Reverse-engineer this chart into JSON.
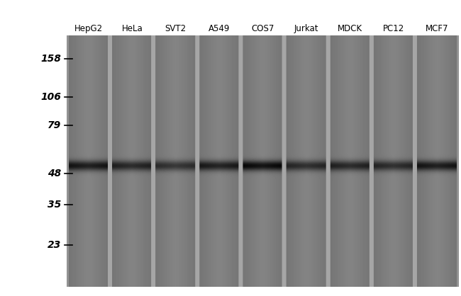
{
  "sample_labels": [
    "HepG2",
    "HeLa",
    "SVT2",
    "A549",
    "COS7",
    "Jurkat",
    "MDCK",
    "PC12",
    "MCF7"
  ],
  "mw_markers": [
    158,
    106,
    79,
    48,
    35,
    23
  ],
  "band_intensities": [
    0.82,
    0.72,
    0.62,
    0.78,
    0.92,
    0.68,
    0.72,
    0.68,
    0.82
  ],
  "band_mw": 52,
  "label_fontsize": 8.5,
  "marker_fontsize": 10,
  "fig_width": 6.5,
  "fig_height": 4.18,
  "dpi": 100,
  "gel_bg_gray": 0.58,
  "lane_bg_gray": 0.52,
  "lane_edge_gray": 0.38,
  "band_gray": 0.08,
  "inter_lane_gray": 0.65,
  "log_min": 2.7,
  "log_max": 5.3,
  "band_sigma_rows": 5,
  "lane_edge_sigma": 0.35
}
